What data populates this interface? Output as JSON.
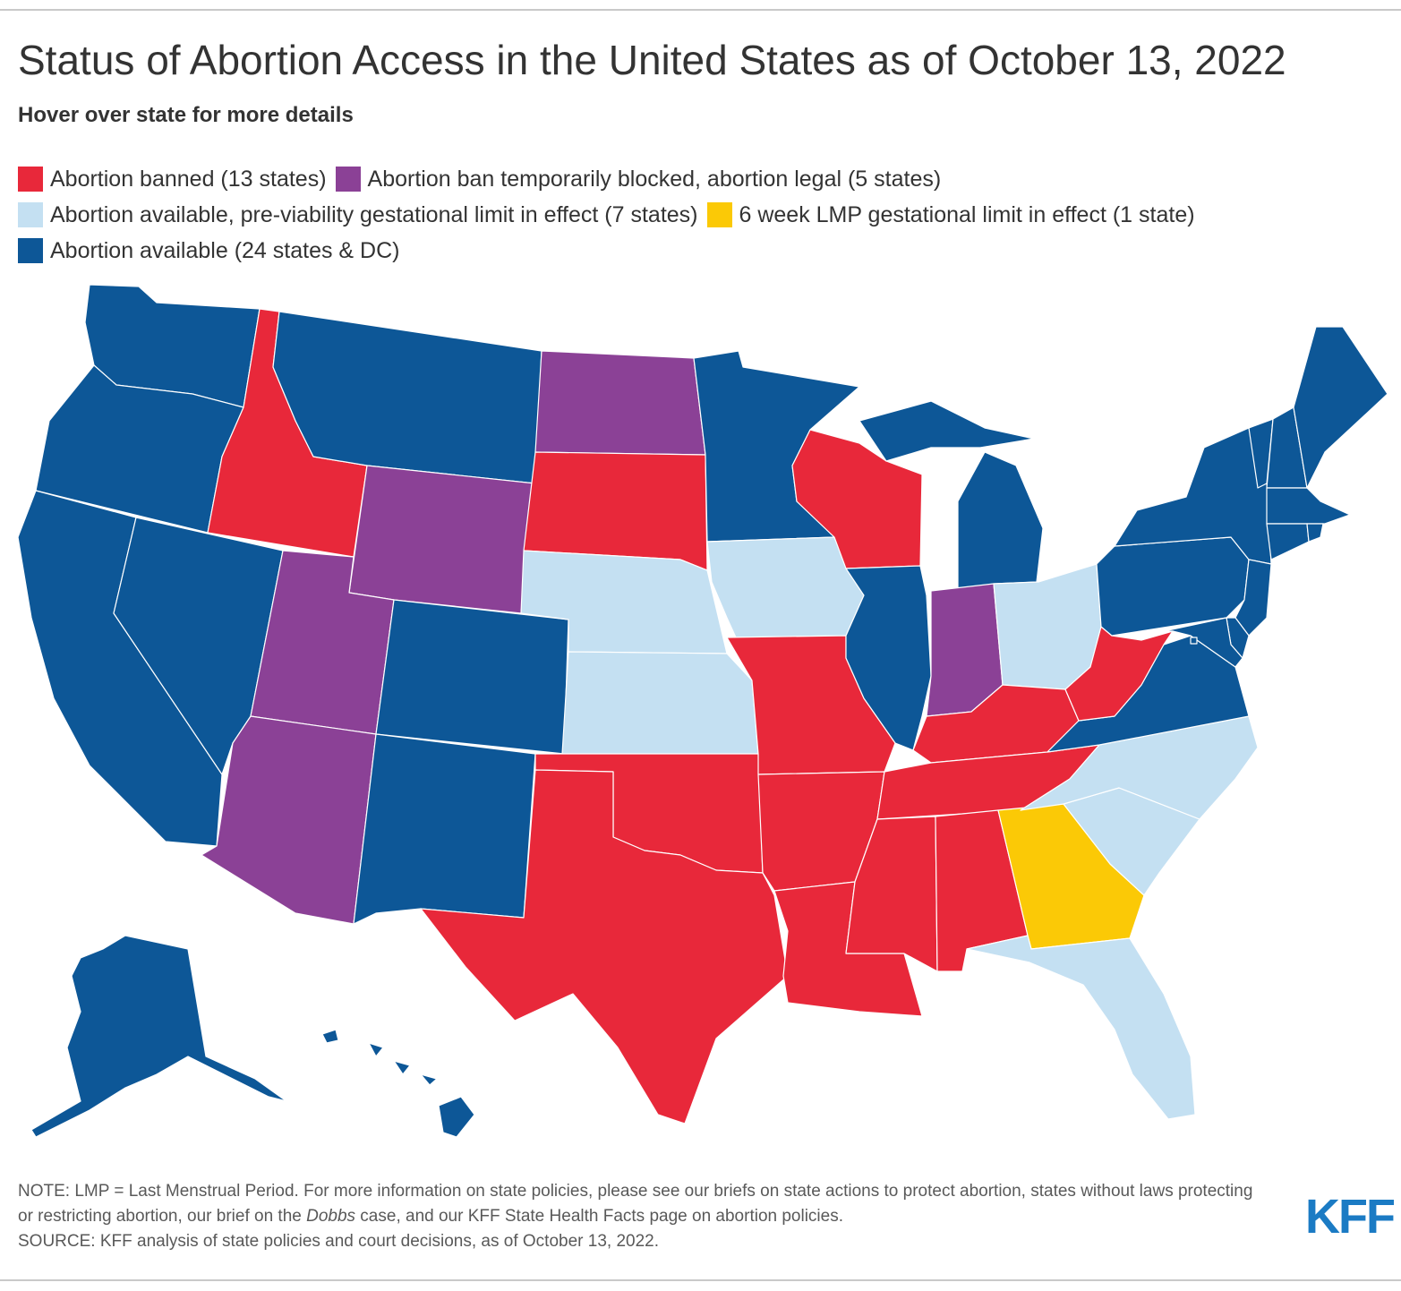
{
  "title": "Status of Abortion Access in the United States as of October 13, 2022",
  "subtitle": "Hover over state for more details",
  "colors": {
    "banned": "#e8283a",
    "blocked": "#8b4196",
    "limit": "#c4e0f2",
    "sixweek": "#fbc906",
    "available": "#0d5797"
  },
  "legend": {
    "banned": "Abortion banned (13 states)",
    "blocked": "Abortion ban temporarily blocked, abortion legal (5 states)",
    "limit": "Abortion available, pre-viability gestational limit in effect (7 states)",
    "sixweek": "6 week LMP gestational limit in effect (1 state)",
    "available": "Abortion available (24 states & DC)"
  },
  "state_status": {
    "banned": [
      "ID",
      "SD",
      "WI",
      "MO",
      "OK",
      "TX",
      "AR",
      "LA",
      "MS",
      "AL",
      "TN",
      "KY",
      "WV"
    ],
    "blocked": [
      "ND",
      "WY",
      "UT",
      "AZ",
      "IN"
    ],
    "limit": [
      "NE",
      "KS",
      "IA",
      "OH",
      "NC",
      "SC",
      "FL"
    ],
    "sixweek": [
      "GA"
    ],
    "available": [
      "WA",
      "OR",
      "CA",
      "NV",
      "MT",
      "CO",
      "NM",
      "MN",
      "IL",
      "MI",
      "PA",
      "NY",
      "VT",
      "NH",
      "ME",
      "MA",
      "RI",
      "CT",
      "NJ",
      "DE",
      "MD",
      "DC",
      "VA",
      "AK",
      "HI"
    ]
  },
  "note": {
    "line1_a": "NOTE: LMP = Last Menstrual Period. For more information on state policies, please see our briefs on state actions to protect abortion, states without laws protecting or restricting abortion, our brief on the ",
    "line1_em": "Dobbs",
    "line1_b": " case, and our KFF State Health Facts page on abortion policies.",
    "source": "SOURCE: KFF analysis of state policies and court decisions, as of October 13, 2022."
  },
  "logo": "KFF"
}
